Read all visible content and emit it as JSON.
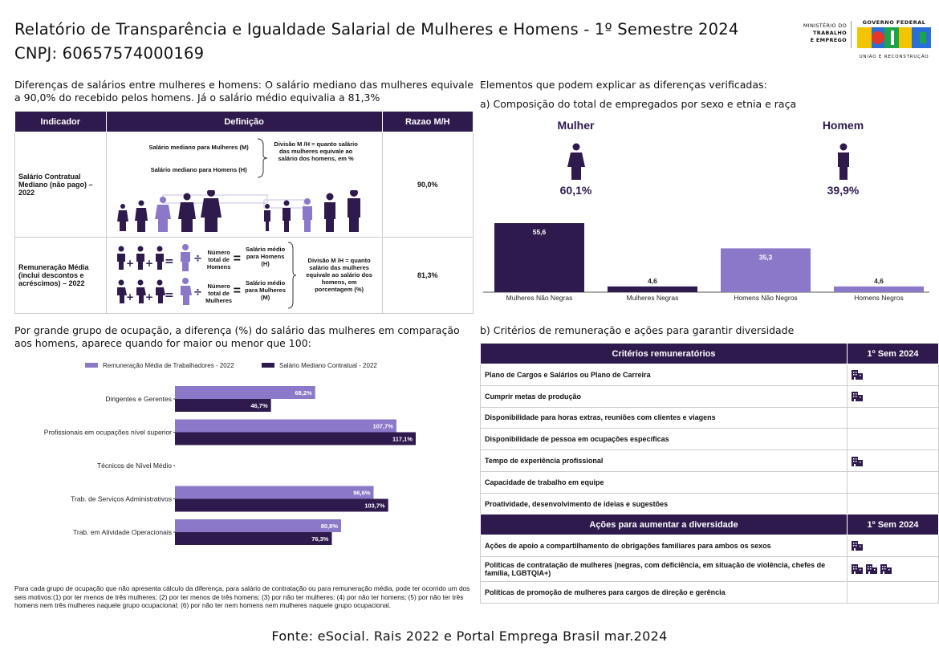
{
  "header": {
    "title_line1": "Relatório de Transparência e Igualdade Salarial de Mulheres e Homens - 1º Semestre 2024",
    "title_line2": "CNPJ: 60657574000169",
    "logo_ministry": [
      "MINISTÉRIO DO",
      "TRABALHO",
      "E EMPREGO"
    ],
    "logo_gov_top": "GOVERNO FEDERAL",
    "logo_gov_word": "BRASIL",
    "logo_gov_bottom": "UNIÃO E RECONSTRUÇÃO"
  },
  "intro": "Diferenças de salários entre mulheres e homens: O salário mediano das mulheres equivale a 90,0% do recebido pelos homens. Já o salário médio equivalia a 81,3%",
  "indicator_table": {
    "headers": [
      "Indicador",
      "Definição",
      "Razao M/H"
    ],
    "row1": {
      "indicator": "Salário Contratual Mediano (não pago) – 2022",
      "def_women": "Salário mediano para Mulheres (M)",
      "def_men": "Salário mediano para Homens (H)",
      "def_division": "Divisão M /H = quanto salário das mulheres equivale ao salário dos homens, em %",
      "ratio": "90,0%"
    },
    "row2": {
      "indicator": "Remuneração Média (inclui descontos e acréscimos) – 2022",
      "total_men": "Número total de Homens",
      "total_women": "Número total de Mulheres",
      "avg_men": "Salário médio para Homens (H)",
      "avg_women": "Salário médio para Mulheres (M)",
      "def_division": "Divisão M /H = quanto salário das mulheres equivale ao salário dos homens, em porcentagem (%)",
      "ratio": "81,3%"
    }
  },
  "occupation_section": {
    "heading": "Por grande grupo de ocupação, a diferença (%) do salário das mulheres em comparação aos homens, aparece quando for maior ou menor que 100:"
  },
  "right_section": {
    "heading": "Elementos que podem explicar as diferenças verificadas:",
    "sub_a": "a) Composição do total de empregados por sexo e etnia e raça",
    "woman_label": "Mulher",
    "man_label": "Homem",
    "woman_pct": "60,1%",
    "man_pct": "39,9%",
    "sub_b": "b) Critérios de remuneração e ações para garantir diversidade"
  },
  "chart_data": [
    {
      "type": "bar",
      "orientation": "vertical",
      "categories": [
        "Mulheres Não Negras",
        "Mulheres Negras",
        "Homens Não Negros",
        "Homens Negros"
      ],
      "values": [
        55.6,
        4.6,
        35.3,
        4.6
      ],
      "value_labels": [
        "55,6",
        "4,6",
        "35,3",
        "4,6"
      ],
      "colors": [
        "#2e1a4d",
        "#2e1a4d",
        "#8c78c8",
        "#8c78c8"
      ]
    },
    {
      "type": "bar",
      "orientation": "horizontal",
      "categories": [
        "Dirigentes e Gerentes",
        "Profissionais em ocupações nível superior",
        "Técnicos de Nível Médio",
        "Trab. de Serviços Administrativos",
        "Trab. em Atividade Operacionais"
      ],
      "series": [
        {
          "name": "Remuneração Média de Trabalhadores - 2022",
          "color": "#8c78c8",
          "values": [
            68.2,
            107.7,
            null,
            96.6,
            80.8
          ],
          "labels": [
            "68,2%",
            "107,7%",
            "",
            "96,6%",
            "80,8%"
          ]
        },
        {
          "name": "Salário Mediano Contratual - 2022",
          "color": "#2e1a4d",
          "values": [
            46.7,
            117.1,
            null,
            103.7,
            76.3
          ],
          "labels": [
            "46,7%",
            "117,1%",
            "",
            "103,7%",
            "76,3%"
          ]
        }
      ],
      "legend": "top"
    }
  ],
  "criteria_table": {
    "header_left": "Critérios remuneratórios",
    "header_right": "1º Sem 2024",
    "rows": [
      {
        "label": "Plano de Cargos e Salários ou Plano de Carreira",
        "icons": 1
      },
      {
        "label": "Cumprir metas de produção",
        "icons": 1
      },
      {
        "label": "Disponibilidade para horas extras, reuniões com clientes e viagens",
        "icons": 0
      },
      {
        "label": "Disponibilidade de pessoa em ocupações específicas",
        "icons": 0
      },
      {
        "label": "Tempo de experiência profissional",
        "icons": 1
      },
      {
        "label": "Capacidade de trabalho em equipe",
        "icons": 0
      },
      {
        "label": "Proatividade, desenvolvimento de ideias e sugestões",
        "icons": 0
      }
    ]
  },
  "diversity_table": {
    "header_left": "Ações para aumentar a diversidade",
    "header_right": "1º Sem 2024",
    "rows": [
      {
        "label": "Ações de apoio a compartilhamento de obrigações familiares para ambos os sexos",
        "icons": 1
      },
      {
        "label": "Políticas de contratação de mulheres (negras, com deficiência, em situação de violência, chefes de família, LGBTQIA+)",
        "icons": 3
      },
      {
        "label": "Políticas de promoção de mulheres para cargos de direção e gerência",
        "icons": 0
      }
    ]
  },
  "footnote": "Para cada grupo de ocupação que não apresenta cálculo da diferença, para salário de contratação ou para remuneração média, pode ter ocorrido um dos seis motivos:(1) por ter menos de três mulheres; (2) por ter menos de três homens; (3) por não ter mulheres; (4) por não ter homens; (5) por não ter três homens nem três mulheres naquele grupo ocupacional; (6) por não ter nem homens nem mulheres naquele grupo ocupacional.",
  "source": "Fonte: eSocial. Rais 2022 e Portal Emprega Brasil mar.2024"
}
